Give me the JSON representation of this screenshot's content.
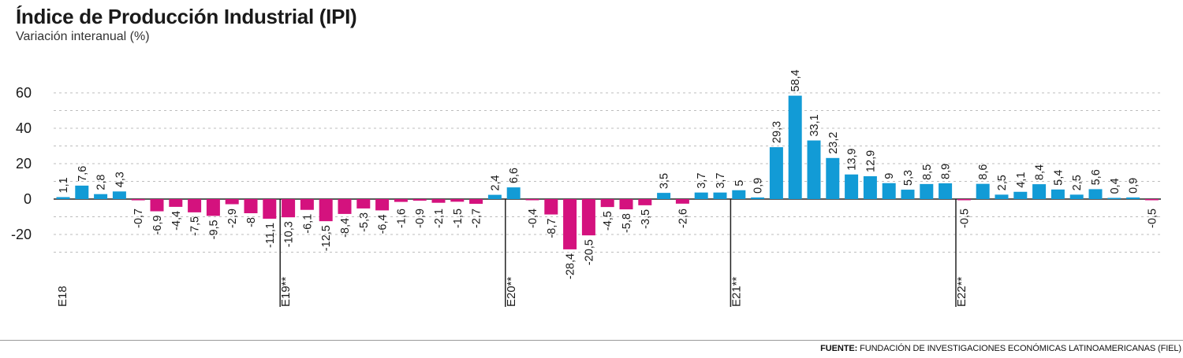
{
  "title": "Índice de Producción Industrial (IPI)",
  "subtitle": "Variación interanual (%)",
  "source_label": "FUENTE:",
  "source_text": "FUNDACIÓN DE INVESTIGACIONES ECONÓMICAS LATINOAMERICANAS (FIEL)",
  "colors": {
    "positive": "#129bd6",
    "negative": "#d4127e",
    "grid": "#bdbdbd",
    "axis": "#222222"
  },
  "chart_data": {
    "type": "bar",
    "ylim": [
      -30,
      65
    ],
    "yticks": [
      60,
      40,
      20,
      0,
      -20
    ],
    "ytick_labels": [
      "60",
      "40",
      "20",
      "0",
      "-20"
    ],
    "grid": true,
    "values": [
      1.1,
      7.6,
      2.8,
      4.3,
      -0.7,
      -6.9,
      -4.4,
      -7.5,
      -9.5,
      -2.9,
      -8,
      -11.1,
      -10.3,
      -6.1,
      -12.5,
      -8.4,
      -5.3,
      -6.4,
      -1.6,
      -0.9,
      -2.1,
      -1.5,
      -2.7,
      2.4,
      6.6,
      -0.4,
      -8.7,
      -28.4,
      -20.5,
      -4.5,
      -5.8,
      -3.5,
      3.5,
      -2.6,
      3.7,
      3.7,
      5,
      0.9,
      29.3,
      58.4,
      33.1,
      23.2,
      13.9,
      12.9,
      9,
      5.3,
      8.5,
      8.9,
      -0.5,
      8.6,
      2.5,
      4.1,
      8.4,
      5.4,
      2.5,
      5.6,
      0.4,
      0.9,
      -0.5
    ],
    "labels": [
      "1,1",
      "7,6",
      "2,8",
      "4,3",
      "-0,7",
      "-6,9",
      "-4,4",
      "-7,5",
      "-9,5",
      "-2,9",
      "-8",
      "-11,1",
      "-10,3",
      "-6,1",
      "-12,5",
      "-8,4",
      "-5,3",
      "-6,4",
      "-1,6",
      "-0,9",
      "-2,1",
      "-1,5",
      "-2,7",
      "2,4",
      "6,6",
      "-0,4",
      "-8,7",
      "-28,4",
      "-20,5",
      "-4,5",
      "-5,8",
      "-3,5",
      "3,5",
      "-2,6",
      "3,7",
      "3,7",
      "5",
      "0,9",
      "29,3",
      "58,4",
      "33,1",
      "23,2",
      "13,9",
      "12,9",
      "9",
      "5,3",
      "8,5",
      "8,9",
      "-0,5",
      "8,6",
      "2,5",
      "4,1",
      "8,4",
      "5,4",
      "2,5",
      "5,6",
      "0,4",
      "0,9",
      "-0,5"
    ],
    "year_markers": [
      {
        "label": "E18",
        "index": 0
      },
      {
        "label": "E19**",
        "index": 12
      },
      {
        "label": "E20**",
        "index": 24
      },
      {
        "label": "E21**",
        "index": 36
      },
      {
        "label": "E22**",
        "index": 48
      }
    ]
  }
}
